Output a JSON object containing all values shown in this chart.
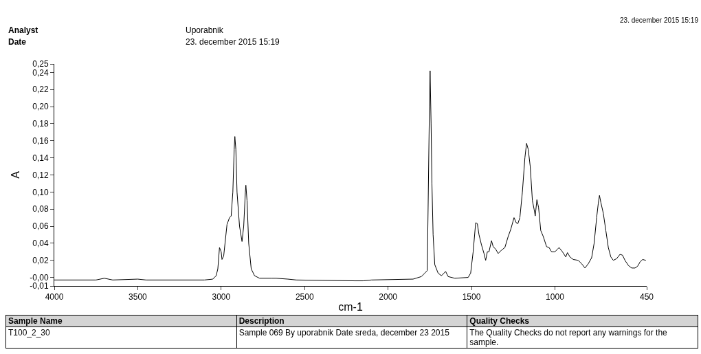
{
  "chart_data": {
    "type": "line",
    "annotations": [
      "Analyst",
      "Uporabnik",
      "Date",
      "23. december 2015 15:19",
      "23. december 2015 15:19",
      "Sample Name",
      "Description",
      "Quality Checks",
      "T100_2_30",
      "Sample 069 By uporabnik Date sreda, december 23 2015",
      "The Quality Checks do not report any warnings for the sample."
    ],
    "xlabel": "cm-1",
    "ylabel": "A",
    "xlim": [
      4000,
      450
    ],
    "xticks": [
      4000,
      3500,
      3000,
      2500,
      2000,
      1500,
      1000,
      450
    ],
    "ylim": [
      -0.01,
      0.25
    ],
    "yticks": [
      {
        "value": 0.25,
        "label": "0,25"
      },
      {
        "value": 0.24,
        "label": "0,24"
      },
      {
        "value": 0.22,
        "label": "0,22"
      },
      {
        "value": 0.2,
        "label": "0,20"
      },
      {
        "value": 0.18,
        "label": "0,18"
      },
      {
        "value": 0.16,
        "label": "0,16"
      },
      {
        "value": 0.14,
        "label": "0,14"
      },
      {
        "value": 0.12,
        "label": "0,12"
      },
      {
        "value": 0.1,
        "label": "0,10"
      },
      {
        "value": 0.08,
        "label": "0,08"
      },
      {
        "value": 0.06,
        "label": "0,06"
      },
      {
        "value": 0.04,
        "label": "0,04"
      },
      {
        "value": 0.02,
        "label": "0,02"
      },
      {
        "value": 0,
        "label": "-0,00"
      },
      {
        "value": -0.01,
        "label": "-0,01"
      }
    ],
    "x": [
      4000,
      3750,
      3700,
      3650,
      3500,
      3450,
      3100,
      3050,
      3030,
      3020,
      3010,
      3000,
      2995,
      2985,
      2965,
      2950,
      2940,
      2930,
      2922,
      2918,
      2912,
      2905,
      2890,
      2875,
      2865,
      2855,
      2852,
      2845,
      2835,
      2820,
      2800,
      2770,
      2700,
      2670,
      2600,
      2550,
      2200,
      2150,
      2100,
      1850,
      1800,
      1780,
      1765,
      1760,
      1752,
      1748,
      1742,
      1737,
      1730,
      1720,
      1700,
      1680,
      1655,
      1640,
      1600,
      1520,
      1505,
      1490,
      1475,
      1465,
      1455,
      1440,
      1425,
      1415,
      1405,
      1395,
      1380,
      1370,
      1355,
      1340,
      1320,
      1300,
      1280,
      1265,
      1245,
      1232,
      1222,
      1210,
      1195,
      1180,
      1170,
      1160,
      1148,
      1135,
      1125,
      1118,
      1108,
      1098,
      1085,
      1070,
      1050,
      1035,
      1020,
      1000,
      985,
      975,
      955,
      935,
      925,
      910,
      890,
      860,
      840,
      820,
      800,
      780,
      765,
      750,
      740,
      733,
      725,
      710,
      695,
      680,
      665,
      650,
      630,
      610,
      595,
      580,
      560,
      540,
      520,
      505,
      490,
      475,
      455
    ],
    "series": [
      {
        "color": "#000000",
        "values": [
          -0.003,
          -0.003,
          -0.001,
          -0.003,
          -0.002,
          -0.003,
          -0.003,
          -0.002,
          0.002,
          0.01,
          0.035,
          0.03,
          0.021,
          0.025,
          0.062,
          0.07,
          0.072,
          0.1,
          0.15,
          0.165,
          0.15,
          0.1,
          0.06,
          0.042,
          0.06,
          0.1,
          0.108,
          0.09,
          0.04,
          0.01,
          0.002,
          -0.001,
          -0.001,
          -0.001,
          -0.002,
          -0.003,
          -0.004,
          -0.004,
          -0.003,
          -0.002,
          0.001,
          0.005,
          0.008,
          0.081,
          0.2,
          0.242,
          0.18,
          0.11,
          0.05,
          0.015,
          0.005,
          0.002,
          0.007,
          0.001,
          -0.001,
          0,
          0.005,
          0.03,
          0.064,
          0.063,
          0.05,
          0.038,
          0.028,
          0.02,
          0.03,
          0.03,
          0.043,
          0.036,
          0.033,
          0.028,
          0.032,
          0.035,
          0.048,
          0.056,
          0.07,
          0.064,
          0.063,
          0.07,
          0.1,
          0.14,
          0.157,
          0.15,
          0.13,
          0.09,
          0.08,
          0.072,
          0.091,
          0.082,
          0.055,
          0.048,
          0.036,
          0.035,
          0.03,
          0.03,
          0.033,
          0.035,
          0.03,
          0.024,
          0.029,
          0.024,
          0.021,
          0.02,
          0.016,
          0.011,
          0.016,
          0.023,
          0.04,
          0.07,
          0.087,
          0.096,
          0.088,
          0.075,
          0.055,
          0.035,
          0.024,
          0.02,
          0.022,
          0.027,
          0.026,
          0.02,
          0.014,
          0.011,
          0.011,
          0.013,
          0.018,
          0.021,
          0.02
        ]
      }
    ]
  }
}
